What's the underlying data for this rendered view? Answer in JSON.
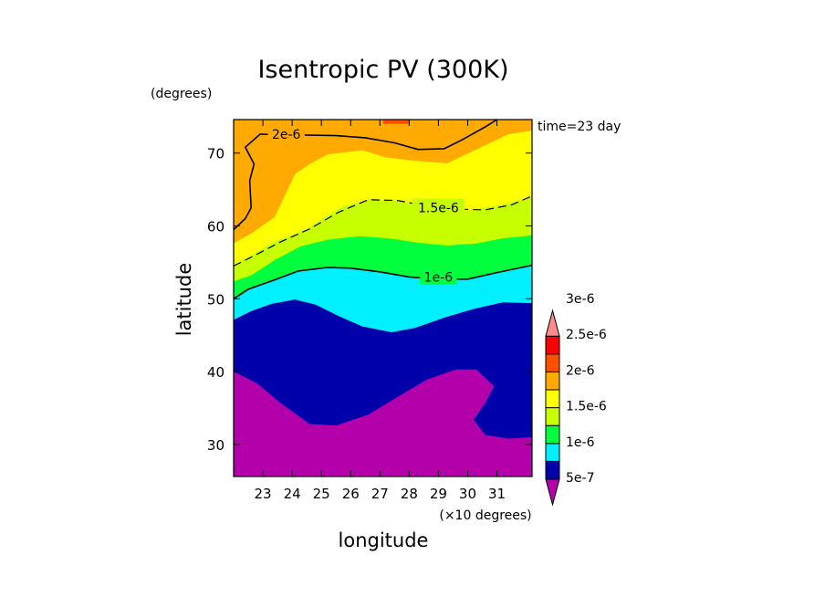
{
  "chart_data": {
    "type": "heatmap",
    "title": "Isentropic PV (300K)",
    "xlabel": "longitude",
    "ylabel": "latitude",
    "x_units": "(×10 degrees)",
    "y_units": "(degrees)",
    "time_label": "time=23 day",
    "xlim": [
      22,
      32.2
    ],
    "ylim": [
      25.6,
      74.6
    ],
    "xticks": [
      "23",
      "24",
      "25",
      "26",
      "27",
      "28",
      "29",
      "30",
      "31"
    ],
    "yticks": [
      "30",
      "40",
      "50",
      "60",
      "70"
    ],
    "levels": [
      5e-07,
      1e-06,
      1.5e-06,
      2e-06,
      2.5e-06,
      3e-06
    ],
    "colorbar": {
      "labels": [
        "5e-7",
        "1e-6",
        "1.5e-6",
        "2e-6",
        "2.5e-6",
        "3e-6"
      ],
      "colors": [
        "#b400aa",
        "#0000aa",
        "#00f0ff",
        "#00ff3c",
        "#c8ff00",
        "#ffff00",
        "#ffaa00",
        "#ff5000",
        "#ff0000",
        "#ff8c8c"
      ]
    },
    "filled_bands": [
      {
        "color": "#ffaa00",
        "range": "2e-6 to 2.5e-6",
        "lower_edge": [
          [
            22.0,
            57.6
          ],
          [
            22.7,
            59.2
          ],
          [
            23.4,
            61.2
          ],
          [
            24.1,
            67.1
          ],
          [
            24.6,
            68.5
          ],
          [
            25.2,
            69.8
          ],
          [
            26.4,
            70.4
          ],
          [
            27.2,
            69.4
          ],
          [
            28.3,
            68.9
          ],
          [
            29.3,
            68.6
          ],
          [
            30.2,
            70.3
          ],
          [
            31.4,
            72.6
          ],
          [
            32.2,
            73.1
          ]
        ]
      },
      {
        "color": "#ffff00",
        "range": "1.5e-6 to 2e-6",
        "lower_edge": [
          [
            22.0,
            54.7
          ],
          [
            22.7,
            56.2
          ],
          [
            23.3,
            57.7
          ],
          [
            24.5,
            59.6
          ],
          [
            25.7,
            62.6
          ],
          [
            26.7,
            63.7
          ],
          [
            27.6,
            63.5
          ],
          [
            28.3,
            62.9
          ],
          [
            29.0,
            62.4
          ],
          [
            30.0,
            62.1
          ],
          [
            31.0,
            62.8
          ],
          [
            32.2,
            63.9
          ]
        ]
      },
      {
        "color": "#c8ff00",
        "range": "1.5e-6",
        "lower_edge": [
          [
            22.0,
            52.4
          ],
          [
            22.6,
            53.2
          ],
          [
            23.4,
            55.3
          ],
          [
            24.3,
            57.2
          ],
          [
            25.2,
            58.1
          ],
          [
            26.3,
            58.6
          ],
          [
            27.3,
            58.3
          ],
          [
            28.3,
            57.7
          ],
          [
            29.3,
            57.3
          ],
          [
            30.3,
            57.6
          ],
          [
            31.2,
            58.3
          ],
          [
            32.2,
            58.7
          ]
        ]
      },
      {
        "color": "#00ff3c",
        "range": "1e-6 to 1.5e-6",
        "lower_edge": [
          [
            22.0,
            50.0
          ],
          [
            22.5,
            51.3
          ],
          [
            23.4,
            52.6
          ],
          [
            24.2,
            53.8
          ],
          [
            25.2,
            54.3
          ],
          [
            26.0,
            54.2
          ],
          [
            27.0,
            53.7
          ],
          [
            28.0,
            53.0
          ],
          [
            29.0,
            52.7
          ],
          [
            30.0,
            52.7
          ],
          [
            31.0,
            53.6
          ],
          [
            32.2,
            54.6
          ]
        ]
      },
      {
        "color": "#00f0ff",
        "range": "1e-6",
        "lower_edge": [
          [
            22.0,
            47.1
          ],
          [
            22.6,
            48.3
          ],
          [
            23.3,
            49.3
          ],
          [
            24.1,
            49.9
          ],
          [
            24.8,
            49.2
          ],
          [
            25.6,
            47.6
          ],
          [
            26.4,
            46.2
          ],
          [
            27.4,
            45.4
          ],
          [
            28.2,
            46.0
          ],
          [
            29.2,
            47.4
          ],
          [
            30.2,
            48.6
          ],
          [
            31.2,
            49.5
          ],
          [
            32.2,
            49.4
          ]
        ]
      },
      {
        "color": "#0000aa",
        "range": "5e-7 to 1e-6",
        "lower_edge": [
          [
            22.0,
            40.0
          ],
          [
            22.8,
            38.4
          ],
          [
            23.6,
            35.7
          ],
          [
            24.6,
            32.8
          ],
          [
            25.5,
            32.6
          ],
          [
            26.6,
            34.1
          ],
          [
            27.6,
            36.5
          ],
          [
            28.6,
            38.9
          ],
          [
            29.6,
            40.3
          ],
          [
            30.3,
            40.3
          ],
          [
            30.9,
            38.0
          ],
          [
            30.6,
            35.7
          ],
          [
            30.2,
            33.4
          ],
          [
            30.6,
            31.3
          ],
          [
            31.4,
            30.8
          ],
          [
            32.2,
            31.0
          ]
        ]
      },
      {
        "color": "#b400aa",
        "range": "below 5e-7",
        "lower_edge": [
          [
            22.0,
            25.6
          ],
          [
            32.2,
            25.6
          ]
        ]
      }
    ],
    "top_patch": {
      "color": "#ff5000",
      "x": [
        27.1,
        28.0
      ],
      "y": [
        74.0,
        74.6
      ]
    },
    "contour_lines": [
      {
        "label": "2e-6",
        "style": "solid",
        "label_at": [
          23.8,
          72.6
        ],
        "points": [
          [
            22.0,
            59.5
          ],
          [
            22.4,
            61.0
          ],
          [
            22.6,
            62.5
          ],
          [
            22.55,
            66.2
          ],
          [
            22.7,
            68.5
          ],
          [
            22.4,
            70.8
          ],
          [
            22.9,
            72.6
          ],
          [
            25.5,
            72.4
          ],
          [
            26.5,
            72.1
          ],
          [
            27.5,
            71.4
          ],
          [
            28.3,
            70.5
          ],
          [
            29.2,
            70.6
          ],
          [
            29.8,
            71.8
          ],
          [
            30.6,
            73.6
          ],
          [
            31.0,
            74.6
          ]
        ]
      },
      {
        "label": "1.5e-6",
        "style": "dashed",
        "label_at": [
          29.0,
          62.5
        ],
        "points": [
          [
            22.0,
            54.5
          ],
          [
            22.7,
            55.9
          ],
          [
            23.6,
            57.8
          ],
          [
            24.6,
            59.6
          ],
          [
            25.6,
            61.9
          ],
          [
            26.6,
            63.6
          ],
          [
            27.6,
            63.5
          ],
          [
            28.4,
            62.9
          ],
          [
            29.6,
            62.3
          ],
          [
            30.6,
            62.2
          ],
          [
            31.5,
            62.9
          ],
          [
            32.2,
            64.1
          ]
        ]
      },
      {
        "label": "1e-6",
        "style": "solid",
        "label_at": [
          29.0,
          53.0
        ],
        "points": [
          [
            22.0,
            50.0
          ],
          [
            22.5,
            51.3
          ],
          [
            23.4,
            52.6
          ],
          [
            24.2,
            53.8
          ],
          [
            25.2,
            54.3
          ],
          [
            26.0,
            54.2
          ],
          [
            27.0,
            53.7
          ],
          [
            28.0,
            53.0
          ],
          [
            29.0,
            52.7
          ],
          [
            30.0,
            52.7
          ],
          [
            31.0,
            53.6
          ],
          [
            32.2,
            54.6
          ]
        ]
      }
    ]
  }
}
